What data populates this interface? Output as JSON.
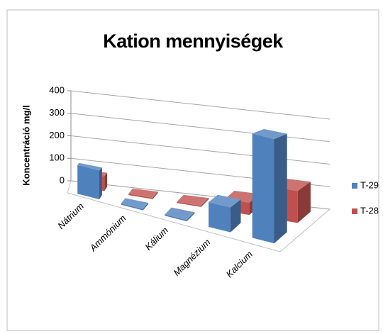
{
  "chart_data": {
    "type": "bar3d",
    "title": "Kation mennyiségek",
    "ylabel": "Koncentráció mg/l",
    "categories": [
      "Nátrium",
      "Ammónium",
      "Kálium",
      "Magnézium",
      "Kalcium"
    ],
    "series": [
      {
        "name": "T-29",
        "color": "#4f81bd",
        "values": [
          105,
          5,
          5,
          90,
          380
        ]
      },
      {
        "name": "T-28",
        "color": "#c0504d",
        "values": [
          60,
          5,
          5,
          50,
          130
        ]
      }
    ],
    "ylim": [
      0,
      400
    ],
    "yticks": [
      0,
      100,
      200,
      300,
      400
    ],
    "grid": true,
    "legend": "right"
  }
}
